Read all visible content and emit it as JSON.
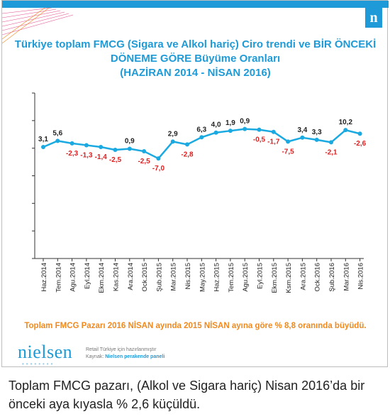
{
  "header": {
    "title_line1": "Türkiye toplam FMCG (Sigara ve Alkol hariç) Ciro trendi ve BİR ÖNCEKİ",
    "title_line2": "DÖNEME GÖRE Büyüme Oranları",
    "title_line3": "(HAZİRAN 2014 - NİSAN 2016)",
    "brand_badge": "n"
  },
  "colors": {
    "accent": "#1e9bd7",
    "line": "#1aa9e0",
    "positive_label": "#222222",
    "negative_label": "#e02020",
    "footer": "#f0891f"
  },
  "chart_data": {
    "type": "line",
    "title": "Türkiye toplam FMCG (Sigara ve Alkol hariç) Ciro trendi ve BİR ÖNCEKİ DÖNEME GÖRE Büyüme Oranları (HAZİRAN 2014 - NİSAN 2016)",
    "categories": [
      "Haz.2014",
      "Tem.2014",
      "Agu.2014",
      "Eyl.2014",
      "Ekm.2014",
      "Kas.2014",
      "Ara.2014",
      "Ock.2015",
      "Şub.2015",
      "Mar.2015",
      "Nis.2015",
      "May.2015",
      "Haz.2015",
      "Tem.2015",
      "Agu.2015",
      "Eyl.2015",
      "Ekm.2015",
      "Ksm.2015",
      "Ara.2015",
      "Ock.2016",
      "Şub.2016",
      "Mar.2016",
      "Nis.2016"
    ],
    "growth_labels": [
      "3,1",
      "5,6",
      "-2,3",
      "-1,3",
      "-1,4",
      "-2,5",
      "0,9",
      "-2,5",
      "-7,0",
      "2,9",
      "-2,8",
      "6,3",
      "4,0",
      "1,9",
      "0,9",
      "-0,5",
      "-1,7",
      "-7,5",
      "3,4",
      "3,3",
      "-2,1",
      "10,2",
      "-2,6"
    ],
    "series": [
      {
        "values": [
          3.1,
          3.27,
          3.2,
          3.15,
          3.1,
          3.02,
          3.05,
          2.98,
          2.78,
          3.25,
          3.17,
          3.37,
          3.5,
          3.55,
          3.6,
          3.58,
          3.52,
          3.25,
          3.36,
          3.3,
          3.23,
          3.57,
          3.47
        ]
      }
    ],
    "ylim": [
      0,
      4.6
    ],
    "y_ticks": 7,
    "grid": false,
    "legend": "none"
  },
  "footer": {
    "note": "Toplam FMCG Pazarı 2016 NİSAN ayında 2015 NİSAN ayına göre % 8,8 oranında büyüdü."
  },
  "branding": {
    "logo_text": "nielsen",
    "source_line1": "Retail Türkiye için hazırlanmıştır",
    "source_prefix": "Kaynak:",
    "source_name": "Nielsen perakende paneli"
  },
  "caption": {
    "text": "Toplam FMCG pazarı, (Alkol ve Sigara hariç) Nisan 2016’da bir önceki aya kıyasla % 2,6 küçüldü."
  }
}
